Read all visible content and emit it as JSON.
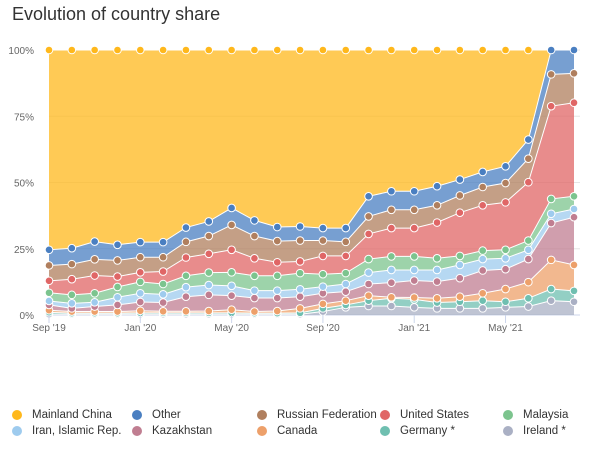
{
  "chart_data": {
    "type": "area",
    "stacked": "percent",
    "title": "Evolution of country share",
    "xlabel": "",
    "ylabel": "",
    "ylim": [
      0,
      100
    ],
    "y_ticks": [
      "0%",
      "25%",
      "50%",
      "75%",
      "100%"
    ],
    "x_tick_labels": [
      {
        "index": 0,
        "label": "Sep '19"
      },
      {
        "index": 4,
        "label": "Jan '20"
      },
      {
        "index": 8,
        "label": "May '20"
      },
      {
        "index": 12,
        "label": "Sep '20"
      },
      {
        "index": 16,
        "label": "Jan '21"
      },
      {
        "index": 20,
        "label": "May '21"
      }
    ],
    "x": [
      "2019-09",
      "2019-10",
      "2019-11",
      "2019-12",
      "2020-01",
      "2020-02",
      "2020-03",
      "2020-04",
      "2020-05",
      "2020-06",
      "2020-07",
      "2020-08",
      "2020-09",
      "2020-10",
      "2020-11",
      "2020-12",
      "2021-01",
      "2021-02",
      "2021-03",
      "2021-04",
      "2021-05",
      "2021-06",
      "2021-07",
      "2021-08"
    ],
    "grid": true,
    "legend_position": "bottom",
    "series": [
      {
        "name": "Ireland *",
        "color": "#aab0c4",
        "values": [
          0.3,
          0.3,
          0.3,
          0.3,
          0.3,
          0.3,
          0.3,
          0.3,
          0.3,
          0.3,
          0.3,
          0.3,
          1.3,
          2.9,
          3.4,
          3.4,
          2.9,
          2.5,
          2.5,
          2.5,
          2.9,
          3.2,
          5.4,
          5.0
        ]
      },
      {
        "name": "Germany *",
        "color": "#6fbfb0",
        "values": [
          0.7,
          0.4,
          0.4,
          0.4,
          0.5,
          0.5,
          0.5,
          0.5,
          0.5,
          0.4,
          0.4,
          0.5,
          1.2,
          0.9,
          2.0,
          2.9,
          3.0,
          2.2,
          2.5,
          2.9,
          2.1,
          3.1,
          4.4,
          4.1
        ]
      },
      {
        "name": "Canada",
        "color": "#eda06a",
        "values": [
          0.8,
          0.6,
          0.6,
          0.6,
          0.8,
          0.6,
          0.6,
          0.7,
          1.2,
          0.6,
          0.8,
          1.7,
          1.7,
          1.6,
          1.9,
          0.4,
          0.7,
          1.6,
          1.9,
          2.8,
          4.8,
          6.1,
          11.0,
          9.8
        ]
      },
      {
        "name": "Kazakhstan",
        "color": "#c07e91",
        "values": [
          2.0,
          1.2,
          1.9,
          2.5,
          3.3,
          3.3,
          5.5,
          6.1,
          5.3,
          5.1,
          4.9,
          4.4,
          4.0,
          3.4,
          4.4,
          5.5,
          6.4,
          6.3,
          7.0,
          8.6,
          7.5,
          8.7,
          13.9,
          18.0
        ]
      },
      {
        "name": "Iran, Islamic Rep.",
        "color": "#9ecbee",
        "values": [
          1.5,
          1.9,
          1.6,
          2.9,
          3.3,
          3.1,
          3.6,
          3.7,
          3.7,
          2.8,
          2.8,
          2.8,
          2.5,
          2.9,
          4.3,
          4.8,
          4.0,
          4.4,
          5.0,
          4.3,
          4.1,
          3.5,
          3.5,
          3.1
        ]
      },
      {
        "name": "Malaysia",
        "color": "#7cc48e",
        "values": [
          3.1,
          3.2,
          3.4,
          3.9,
          4.3,
          3.9,
          4.3,
          4.7,
          5.1,
          5.6,
          5.6,
          6.1,
          4.7,
          4.1,
          5.1,
          5.1,
          5.1,
          4.4,
          3.4,
          3.2,
          3.2,
          3.5,
          5.6,
          4.8
        ]
      },
      {
        "name": "United States",
        "color": "#e06666",
        "values": [
          4.5,
          5.9,
          6.7,
          3.9,
          3.6,
          4.7,
          6.9,
          7.1,
          8.5,
          6.6,
          5.1,
          4.4,
          6.9,
          6.5,
          9.5,
          10.7,
          10.7,
          13.5,
          16.3,
          17.1,
          17.9,
          22.0,
          35.0,
          35.3
        ]
      },
      {
        "name": "Russian Federation",
        "color": "#b07f5e",
        "values": [
          5.8,
          5.7,
          6.1,
          6.1,
          5.7,
          5.4,
          5.9,
          6.7,
          9.4,
          8.4,
          8.0,
          7.9,
          5.8,
          5.3,
          6.6,
          6.9,
          6.9,
          6.5,
          6.5,
          6.9,
          7.3,
          8.9,
          12.0,
          11.1
        ]
      },
      {
        "name": "Other",
        "color": "#4a7fc1",
        "values": [
          5.9,
          6.0,
          6.7,
          5.9,
          5.7,
          5.7,
          5.4,
          5.5,
          6.4,
          5.9,
          5.3,
          5.3,
          4.7,
          5.2,
          7.6,
          7.0,
          7.0,
          7.2,
          6.0,
          5.7,
          6.3,
          7.2,
          9.2,
          8.8
        ]
      },
      {
        "name": "Mainland China",
        "color": "#ffb81c",
        "values": [
          75.4,
          74.8,
          72.3,
          73.5,
          72.5,
          72.5,
          67.0,
          64.7,
          59.6,
          64.3,
          66.8,
          66.6,
          67.2,
          67.2,
          55.2,
          53.3,
          53.3,
          51.4,
          48.9,
          46.0,
          43.9,
          33.8,
          0,
          0
        ]
      }
    ],
    "legend_order": [
      "Mainland China",
      "Other",
      "Russian Federation",
      "United States",
      "Malaysia",
      "Iran, Islamic Rep.",
      "Kazakhstan",
      "Canada",
      "Germany *",
      "Ireland *"
    ]
  }
}
